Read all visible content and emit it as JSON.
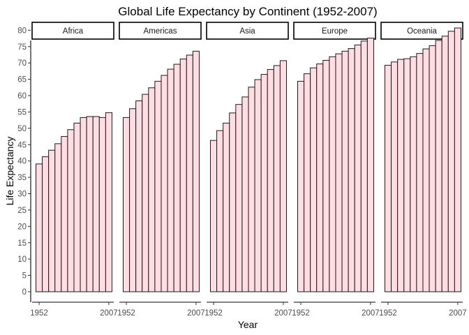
{
  "chart_data": {
    "type": "bar",
    "title": "Global Life Expectancy by Continent (1952-2007)",
    "xlabel": "Year",
    "ylabel": "Life Expectancy",
    "ylim": [
      0,
      82
    ],
    "y_ticks": [
      0,
      5,
      10,
      15,
      20,
      25,
      30,
      35,
      40,
      45,
      50,
      55,
      60,
      65,
      70,
      75,
      80
    ],
    "x_tick_labels": [
      "1952",
      "2007"
    ],
    "grid": false,
    "bar_fill": "#ffdde3",
    "bar_stroke": "#1a1a1a",
    "categories": [
      1952,
      1957,
      1962,
      1967,
      1972,
      1977,
      1982,
      1987,
      1992,
      1997,
      2002,
      2007
    ],
    "facets": [
      {
        "name": "Africa",
        "values": [
          39.1,
          41.3,
          43.3,
          45.3,
          47.5,
          49.6,
          51.6,
          53.3,
          53.6,
          53.6,
          53.3,
          54.8
        ]
      },
      {
        "name": "Americas",
        "values": [
          53.3,
          56.0,
          58.4,
          60.4,
          62.4,
          64.4,
          66.2,
          68.1,
          69.6,
          71.2,
          72.4,
          73.6
        ]
      },
      {
        "name": "Asia",
        "values": [
          46.3,
          49.3,
          51.6,
          54.7,
          57.3,
          59.6,
          62.6,
          64.9,
          66.5,
          68.0,
          69.2,
          70.7
        ]
      },
      {
        "name": "Europe",
        "values": [
          64.4,
          66.7,
          68.5,
          69.7,
          70.8,
          71.9,
          72.8,
          73.6,
          74.4,
          75.5,
          76.7,
          77.6
        ]
      },
      {
        "name": "Oceania",
        "values": [
          69.3,
          70.3,
          71.1,
          71.3,
          71.9,
          72.9,
          74.3,
          75.3,
          76.9,
          78.2,
          79.7,
          80.7
        ]
      }
    ]
  }
}
